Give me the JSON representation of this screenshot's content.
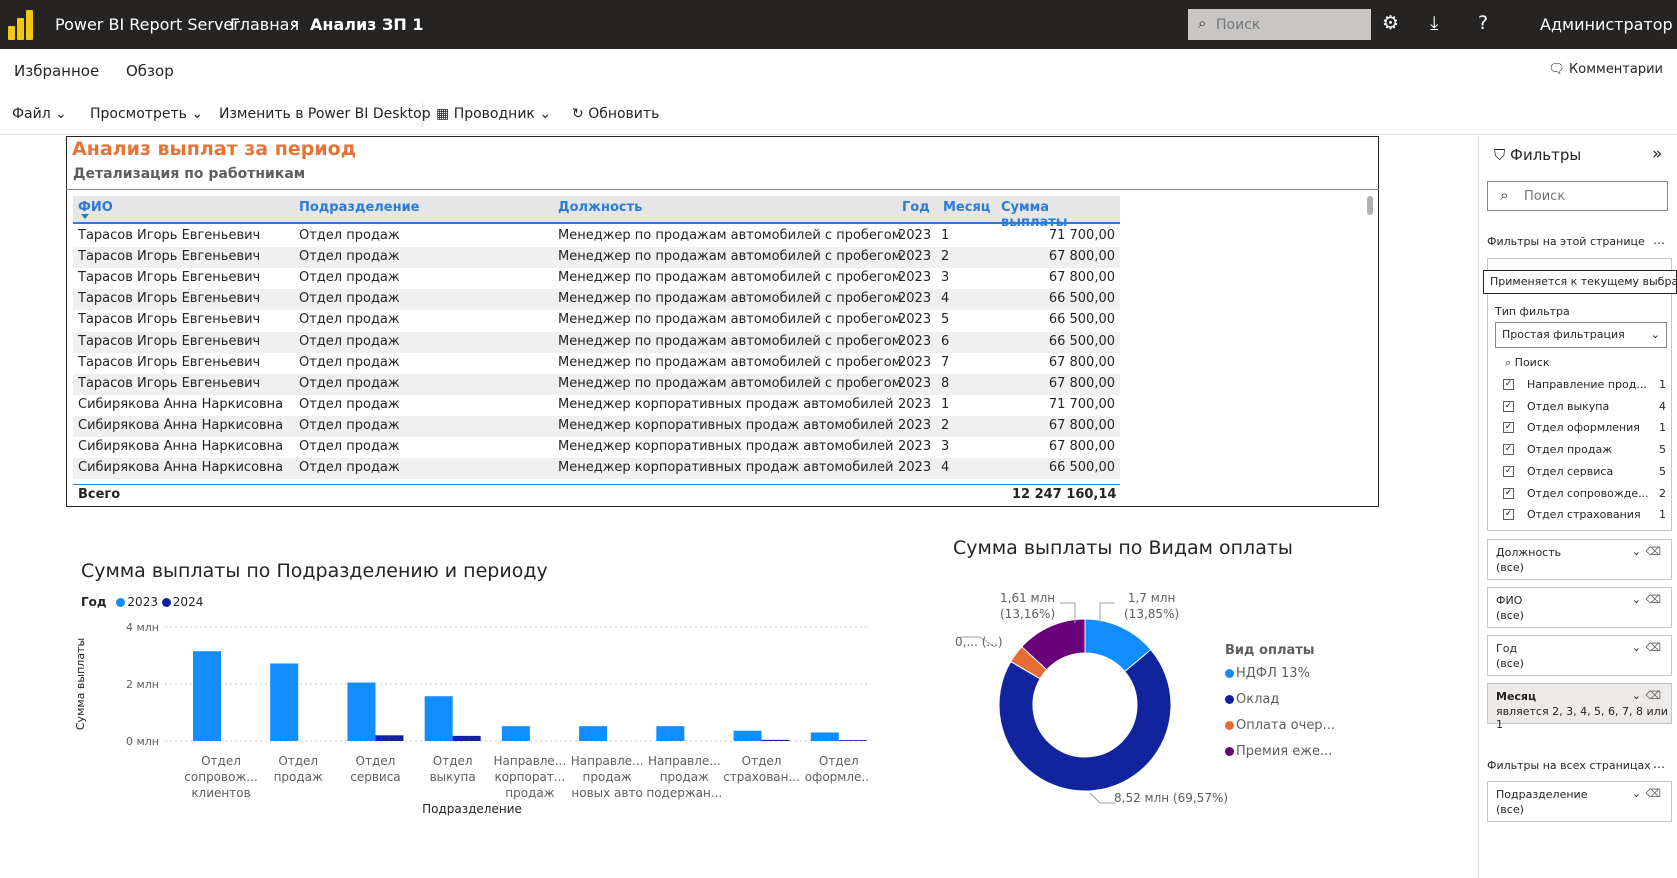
{
  "topbar": {
    "app_name": "Power BI Report Server",
    "breadcrumb_home": "Главная",
    "breadcrumb_current": "Анализ ЗП 1",
    "search_placeholder": "Поиск",
    "user": "Администратор"
  },
  "nav": {
    "favorites": "Избранное",
    "browse": "Обзор",
    "comments": "Комментарии"
  },
  "toolbar": {
    "file": "Файл",
    "view": "Просмотреть",
    "edit_desktop": "Изменить в Power BI Desktop",
    "explorer": "Проводник",
    "refresh": "Обновить"
  },
  "report": {
    "title": "Анализ выплат за период",
    "subtitle": "Детализация по работникам",
    "columns": [
      "ФИО",
      "Подразделение",
      "Должность",
      "Год",
      "Месяц",
      "Сумма выплаты"
    ],
    "rows": [
      [
        "Тарасов Игорь Евгеньевич",
        "Отдел продаж",
        "Менеджер по продажам автомобилей с пробегом",
        "2023",
        "1",
        "71 700,00"
      ],
      [
        "Тарасов Игорь Евгеньевич",
        "Отдел продаж",
        "Менеджер по продажам автомобилей с пробегом",
        "2023",
        "2",
        "67 800,00"
      ],
      [
        "Тарасов Игорь Евгеньевич",
        "Отдел продаж",
        "Менеджер по продажам автомобилей с пробегом",
        "2023",
        "3",
        "67 800,00"
      ],
      [
        "Тарасов Игорь Евгеньевич",
        "Отдел продаж",
        "Менеджер по продажам автомобилей с пробегом",
        "2023",
        "4",
        "66 500,00"
      ],
      [
        "Тарасов Игорь Евгеньевич",
        "Отдел продаж",
        "Менеджер по продажам автомобилей с пробегом",
        "2023",
        "5",
        "66 500,00"
      ],
      [
        "Тарасов Игорь Евгеньевич",
        "Отдел продаж",
        "Менеджер по продажам автомобилей с пробегом",
        "2023",
        "6",
        "66 500,00"
      ],
      [
        "Тарасов Игорь Евгеньевич",
        "Отдел продаж",
        "Менеджер по продажам автомобилей с пробегом",
        "2023",
        "7",
        "67 800,00"
      ],
      [
        "Тарасов Игорь Евгеньевич",
        "Отдел продаж",
        "Менеджер по продажам автомобилей с пробегом",
        "2023",
        "8",
        "67 800,00"
      ],
      [
        "Сибирякова Анна Наркисовна",
        "Отдел продаж",
        "Менеджер корпоративных продаж автомобилей",
        "2023",
        "1",
        "71 700,00"
      ],
      [
        "Сибирякова Анна Наркисовна",
        "Отдел продаж",
        "Менеджер корпоративных продаж автомобилей",
        "2023",
        "2",
        "67 800,00"
      ],
      [
        "Сибирякова Анна Наркисовна",
        "Отдел продаж",
        "Менеджер корпоративных продаж автомобилей",
        "2023",
        "3",
        "67 800,00"
      ],
      [
        "Сибирякова Анна Наркисовна",
        "Отдел продаж",
        "Менеджер корпоративных продаж автомобилей",
        "2023",
        "4",
        "66 500,00"
      ]
    ],
    "total_label": "Всего",
    "total_value": "12 247 160,14"
  },
  "chart_data": [
    {
      "type": "bar",
      "title": "Сумма выплаты по Подразделению и периоду",
      "legend_title": "Год",
      "xlabel": "Подразделение",
      "ylabel": "Сумма выплаты",
      "ylim": [
        0,
        4
      ],
      "y_ticks": [
        "0 млн",
        "2 млн",
        "4 млн"
      ],
      "categories": [
        [
          "Отдел",
          "сопровож...",
          "клиентов"
        ],
        [
          "Отдел",
          "продаж"
        ],
        [
          "Отдел",
          "сервиса"
        ],
        [
          "Отдел",
          "выкупа"
        ],
        [
          "Направле...",
          "корпорат...",
          "продаж"
        ],
        [
          "Направле...",
          "продаж",
          "новых авто"
        ],
        [
          "Направле...",
          "продаж",
          "подержан..."
        ],
        [
          "Отдел",
          "страхован..."
        ],
        [
          "Отдел",
          "оформле..."
        ]
      ],
      "series": [
        {
          "name": "2023",
          "color": "#118dff",
          "values": [
            3.15,
            2.72,
            2.05,
            1.57,
            0.52,
            0.52,
            0.52,
            0.36,
            0.3
          ]
        },
        {
          "name": "2024",
          "color": "#12239e",
          "values": [
            0,
            0,
            0.2,
            0.18,
            0,
            0,
            0,
            0.04,
            0.03
          ]
        }
      ]
    },
    {
      "type": "pie",
      "title": "Сумма выплаты по Видам оплаты",
      "legend_title": "Вид оплаты",
      "slices": [
        {
          "name": "НДФЛ 13%",
          "value": 1.7,
          "label": "1,7 млн",
          "pct": "(13,85%)",
          "color": "#118dff"
        },
        {
          "name": "Оклад",
          "value": 8.52,
          "label": "8,52 млн (69,57%)",
          "pct": "",
          "color": "#12239e"
        },
        {
          "name": "Оплата очер...",
          "value": 0.42,
          "label": "0,... (...)",
          "pct": "",
          "color": "#e66c37"
        },
        {
          "name": "Премия еже...",
          "value": 1.61,
          "label": "1,61 млн",
          "pct": "(13,16%)",
          "color": "#6b007b"
        }
      ]
    }
  ],
  "filters": {
    "title": "Фильтры",
    "search_placeholder": "Поиск",
    "this_page": "Фильтры на этой странице",
    "all_pages": "Фильтры на всех страницах",
    "tooltip": "Применяется к текущему выбранному визуальному элементу",
    "filter_type_label": "Тип фильтра",
    "filter_type_value": "Простая фильтрация",
    "inner_search": "Поиск",
    "list": [
      {
        "label": "Направление прод...",
        "count": "1"
      },
      {
        "label": "Отдел выкупа",
        "count": "4"
      },
      {
        "label": "Отдел оформления",
        "count": "1"
      },
      {
        "label": "Отдел продаж",
        "count": "5"
      },
      {
        "label": "Отдел сервиса",
        "count": "5"
      },
      {
        "label": "Отдел сопровожде...",
        "count": "2"
      },
      {
        "label": "Отдел страхования",
        "count": "1"
      }
    ],
    "cards": [
      {
        "label": "Должность",
        "value": "(все)"
      },
      {
        "label": "ФИО",
        "value": "(все)"
      },
      {
        "label": "Год",
        "value": "(все)"
      },
      {
        "label": "Месяц",
        "value": "является 2, 3, 4, 5, 6, 7, 8 или 1"
      }
    ],
    "all_cards": [
      {
        "label": "Подразделение",
        "value": "(все)"
      }
    ]
  }
}
